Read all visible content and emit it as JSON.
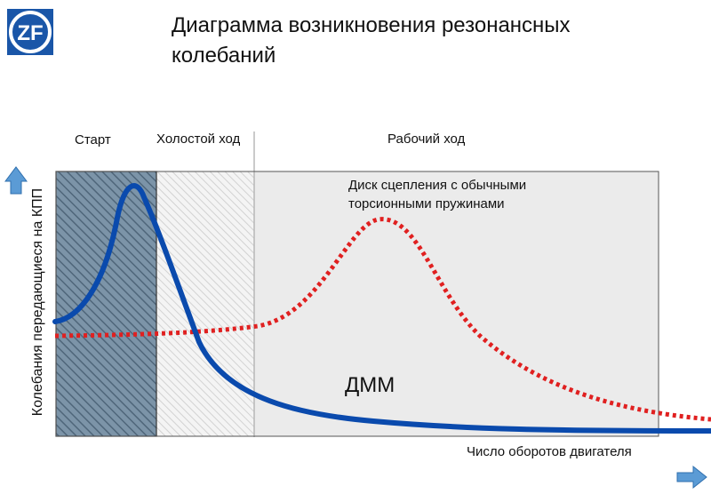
{
  "logo": {
    "text": "ZF",
    "color": "#1a56a8"
  },
  "title": "Диаграмма возникновения резонансных колебаний",
  "zones": [
    {
      "label": "Старт"
    },
    {
      "label": "Холостой ход"
    },
    {
      "label": "Рабочий ход"
    }
  ],
  "axes": {
    "ylabel": "Колебания передающиеся на КПП",
    "xlabel": "Число оборотов двигателя",
    "arrow_color": "#5b9bd5"
  },
  "curves": {
    "conventional": {
      "label": "Диск сцепления с обычными торсионными пружинами",
      "line1": "Диск сцепления с обычными",
      "line2": "торсионными пружинами",
      "color": "#e02020",
      "style": "dotted"
    },
    "dmm": {
      "label": "ДММ",
      "color": "#0a4aad",
      "style": "solid"
    }
  }
}
